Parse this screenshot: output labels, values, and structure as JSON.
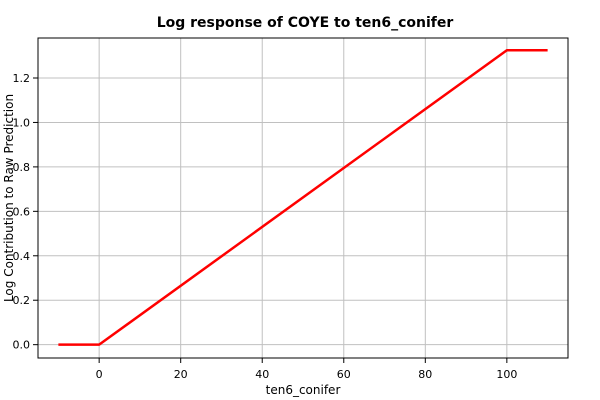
{
  "chart_data": {
    "type": "line",
    "title": "Log response of COYE to ten6_conifer",
    "xlabel": "ten6_conifer",
    "ylabel": "Log Contribution to Raw Prediction",
    "xlim": [
      -15,
      115
    ],
    "ylim": [
      -0.06,
      1.38
    ],
    "xticks": [
      0,
      20,
      40,
      60,
      80,
      100
    ],
    "yticks": [
      0.0,
      0.2,
      0.4,
      0.6,
      0.8,
      1.0,
      1.2
    ],
    "xtick_labels": [
      "0",
      "20",
      "40",
      "60",
      "80",
      "100"
    ],
    "ytick_labels": [
      "0.0",
      "0.2",
      "0.4",
      "0.6",
      "0.8",
      "1.0",
      "1.2"
    ],
    "grid": true,
    "series": [
      {
        "color": "#ff0000",
        "x": [
          -10,
          0,
          100,
          110
        ],
        "y": [
          0.0,
          0.0,
          1.325,
          1.325
        ]
      }
    ]
  }
}
